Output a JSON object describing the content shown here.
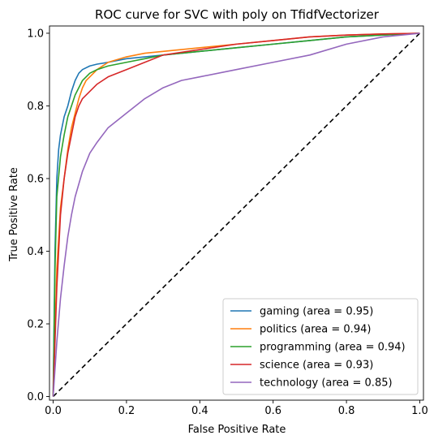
{
  "chart_data": {
    "type": "line",
    "title": "ROC curve for SVC with poly on TfidfVectorizer",
    "xlabel": "False Positive Rate",
    "ylabel": "True Positive Rate",
    "xlim": [
      -0.01,
      1.01
    ],
    "ylim": [
      -0.01,
      1.02
    ],
    "xticks": [
      0.0,
      0.2,
      0.4,
      0.6,
      0.8,
      1.0
    ],
    "xtick_labels": [
      "0.0",
      "0.2",
      "0.4",
      "0.6",
      "0.8",
      "1.0"
    ],
    "yticks": [
      0.0,
      0.2,
      0.4,
      0.6,
      0.8,
      1.0
    ],
    "ytick_labels": [
      "0.0",
      "0.2",
      "0.4",
      "0.6",
      "0.8",
      "1.0"
    ],
    "grid": false,
    "legend_position": "bottom-right",
    "series": [
      {
        "name": "gaming (area = 0.95)",
        "color": "#1f77b4",
        "x": [
          0.0,
          0.005,
          0.01,
          0.015,
          0.02,
          0.03,
          0.04,
          0.05,
          0.06,
          0.07,
          0.08,
          0.1,
          0.12,
          0.15,
          0.2,
          0.25,
          0.3,
          0.35,
          0.4,
          0.45,
          0.5,
          0.6,
          0.7,
          0.8,
          0.9,
          1.0
        ],
        "y": [
          0.0,
          0.4,
          0.6,
          0.68,
          0.72,
          0.77,
          0.8,
          0.84,
          0.87,
          0.89,
          0.9,
          0.91,
          0.915,
          0.92,
          0.93,
          0.935,
          0.94,
          0.945,
          0.95,
          0.955,
          0.96,
          0.97,
          0.98,
          0.99,
          0.995,
          1.0
        ]
      },
      {
        "name": "politics (area = 0.94)",
        "color": "#ff7f0e",
        "x": [
          0.0,
          0.01,
          0.02,
          0.03,
          0.04,
          0.05,
          0.06,
          0.07,
          0.08,
          0.09,
          0.1,
          0.12,
          0.15,
          0.2,
          0.25,
          0.3,
          0.35,
          0.4,
          0.5,
          0.6,
          0.7,
          0.8,
          0.9,
          1.0
        ],
        "y": [
          0.0,
          0.35,
          0.52,
          0.6,
          0.68,
          0.74,
          0.78,
          0.82,
          0.85,
          0.87,
          0.88,
          0.9,
          0.92,
          0.935,
          0.945,
          0.95,
          0.955,
          0.96,
          0.97,
          0.98,
          0.99,
          0.995,
          0.998,
          1.0
        ]
      },
      {
        "name": "programming (area = 0.94)",
        "color": "#2ca02c",
        "x": [
          0.0,
          0.005,
          0.01,
          0.02,
          0.03,
          0.04,
          0.05,
          0.06,
          0.08,
          0.1,
          0.12,
          0.15,
          0.2,
          0.25,
          0.3,
          0.4,
          0.5,
          0.6,
          0.7,
          0.8,
          0.9,
          1.0
        ],
        "y": [
          0.0,
          0.35,
          0.55,
          0.66,
          0.72,
          0.77,
          0.8,
          0.83,
          0.87,
          0.89,
          0.9,
          0.91,
          0.92,
          0.93,
          0.94,
          0.95,
          0.96,
          0.97,
          0.98,
          0.99,
          0.995,
          1.0
        ]
      },
      {
        "name": "science (area = 0.93)",
        "color": "#d62728",
        "x": [
          0.0,
          0.01,
          0.02,
          0.03,
          0.04,
          0.05,
          0.06,
          0.07,
          0.08,
          0.1,
          0.12,
          0.15,
          0.2,
          0.25,
          0.3,
          0.4,
          0.5,
          0.6,
          0.7,
          0.8,
          0.9,
          1.0
        ],
        "y": [
          0.0,
          0.3,
          0.5,
          0.6,
          0.67,
          0.72,
          0.77,
          0.8,
          0.82,
          0.84,
          0.86,
          0.88,
          0.9,
          0.92,
          0.94,
          0.955,
          0.97,
          0.98,
          0.99,
          0.995,
          0.998,
          1.0
        ]
      },
      {
        "name": "technology (area = 0.85)",
        "color": "#9467bd",
        "x": [
          0.0,
          0.01,
          0.02,
          0.03,
          0.04,
          0.05,
          0.06,
          0.08,
          0.1,
          0.12,
          0.15,
          0.2,
          0.25,
          0.3,
          0.35,
          0.4,
          0.5,
          0.6,
          0.7,
          0.8,
          0.9,
          1.0
        ],
        "y": [
          0.0,
          0.15,
          0.27,
          0.36,
          0.44,
          0.5,
          0.55,
          0.62,
          0.67,
          0.7,
          0.74,
          0.78,
          0.82,
          0.85,
          0.87,
          0.88,
          0.9,
          0.92,
          0.94,
          0.97,
          0.99,
          1.0
        ]
      }
    ],
    "reference_line": {
      "style": "dashed",
      "color": "#000000",
      "x": [
        0.0,
        1.0
      ],
      "y": [
        0.0,
        1.0
      ]
    }
  }
}
